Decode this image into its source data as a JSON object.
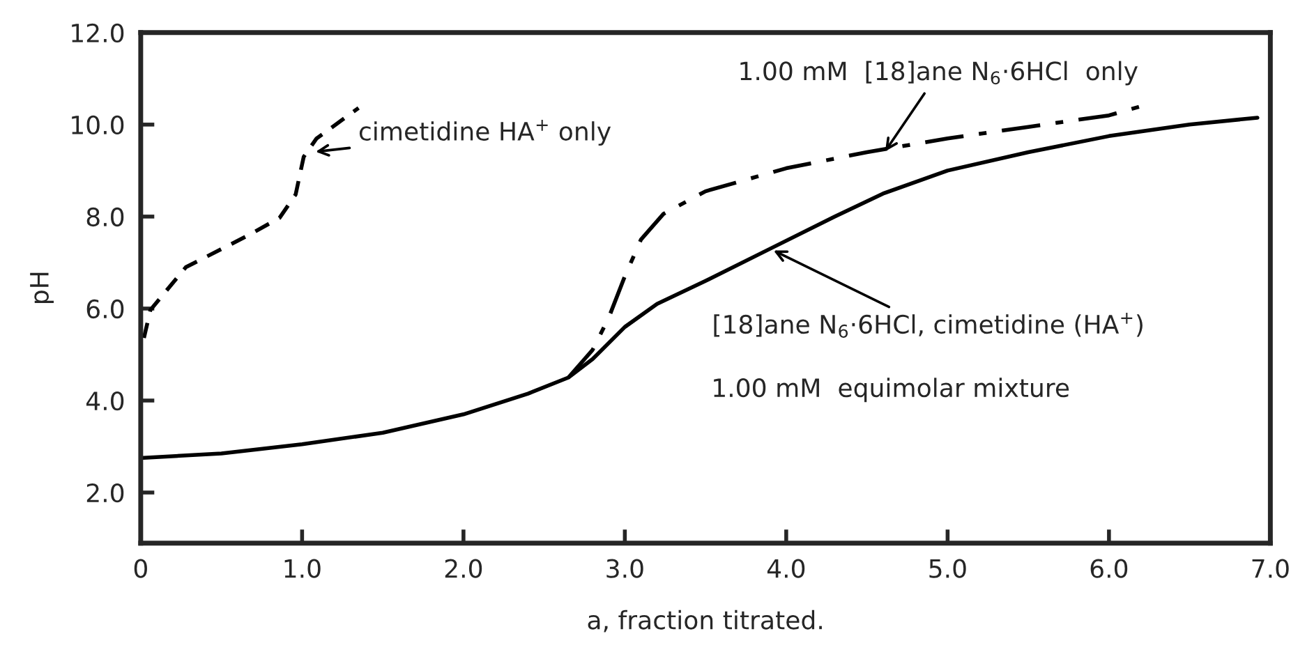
{
  "chart_data": {
    "type": "line",
    "xlabel": "a, fraction titrated.",
    "ylabel": "pH",
    "xlim": [
      0,
      7.0
    ],
    "ylim": [
      0.9,
      12.0
    ],
    "xticks": [
      0,
      {
        "value": 1,
        "label": "1.0"
      },
      {
        "value": 2,
        "label": "2.0"
      },
      {
        "value": 3,
        "label": "3.0"
      },
      {
        "value": 4,
        "label": "4.0"
      },
      {
        "value": 5,
        "label": "5.0"
      },
      {
        "value": 6,
        "label": "6.0"
      },
      {
        "value": 7,
        "label": "7.0"
      }
    ],
    "yticks": [
      {
        "value": 2,
        "label": "2.0"
      },
      {
        "value": 4,
        "label": "4.0"
      },
      {
        "value": 6,
        "label": "6.0"
      },
      {
        "value": 8,
        "label": "8.0"
      },
      {
        "value": 10,
        "label": "10.0"
      },
      {
        "value": 12,
        "label": "12.0"
      }
    ],
    "grid": false,
    "legend": false,
    "marker": "none",
    "series": [
      {
        "color": "#000000",
        "line_style": "solid",
        "x": [
          0,
          0.5,
          1.0,
          1.5,
          2.0,
          2.4,
          2.65,
          2.8,
          3.0,
          3.2,
          3.5,
          3.9,
          4.3,
          4.6,
          5.0,
          5.5,
          6.0,
          6.5,
          6.92
        ],
        "values": [
          2.75,
          2.85,
          3.05,
          3.3,
          3.7,
          4.15,
          4.5,
          4.9,
          5.6,
          6.1,
          6.6,
          7.3,
          8.0,
          8.5,
          9.0,
          9.4,
          9.75,
          10.0,
          10.15
        ]
      },
      {
        "color": "#000000",
        "line_style": "dashdot",
        "x": [
          2.65,
          2.8,
          2.9,
          3.0,
          3.1,
          3.24,
          3.5,
          4.0,
          4.5,
          5.0,
          5.5,
          6.0,
          6.2
        ],
        "values": [
          4.5,
          5.1,
          5.8,
          6.7,
          7.5,
          8.06,
          8.55,
          9.05,
          9.4,
          9.7,
          9.95,
          10.2,
          10.4
        ]
      },
      {
        "color": "#000000",
        "line_style": "dashed",
        "x": [
          0.02,
          0.06,
          0.28,
          0.66,
          0.86,
          0.96,
          1.01,
          1.09,
          1.35
        ],
        "values": [
          5.36,
          5.97,
          6.9,
          7.58,
          7.97,
          8.48,
          9.3,
          9.7,
          10.36
        ]
      }
    ],
    "annotations": [
      {
        "text": "cimetidine HA$^{+}$ only",
        "x": 1.06,
        "y": 9.4
      },
      {
        "text": "1.00 mM  [18]ane N$_{6}$·6HCl  only",
        "x": 4.6,
        "y": 9.35
      },
      {
        "text": "[18]ane N$_{6}$·6HCl, cimetidine (HA$^{+}$)",
        "x": 3.9,
        "y": 7.3
      },
      "1.00 mM  equimolar mixture"
    ]
  }
}
